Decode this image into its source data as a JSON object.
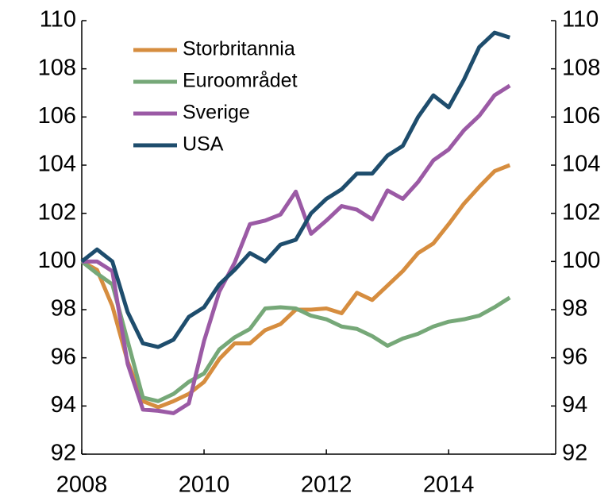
{
  "chart_data": {
    "type": "line",
    "x": [
      2008,
      2008.25,
      2008.5,
      2008.75,
      2009,
      2009.25,
      2009.5,
      2009.75,
      2010,
      2010.25,
      2010.5,
      2010.75,
      2011,
      2011.25,
      2011.5,
      2011.75,
      2012,
      2012.25,
      2012.5,
      2012.75,
      2013,
      2013.25,
      2013.5,
      2013.75,
      2014,
      2014.25,
      2014.5,
      2014.75,
      2015
    ],
    "xlim": [
      2008,
      2015.75
    ],
    "xticks": [
      2008,
      2010,
      2012,
      2014
    ],
    "ylim": [
      92,
      110
    ],
    "yticks": [
      92,
      94,
      96,
      98,
      100,
      102,
      104,
      106,
      108,
      110
    ],
    "y2lim": [
      92,
      110
    ],
    "y2ticks": [
      92,
      94,
      96,
      98,
      100,
      102,
      104,
      106,
      108,
      110
    ],
    "legend": "upper left",
    "series": [
      {
        "name": "Storbritannia",
        "color": "#d68d3f",
        "values": [
          100,
          99.65,
          98.15,
          95.85,
          94.2,
          93.95,
          94.2,
          94.5,
          95.0,
          95.95,
          96.6,
          96.6,
          97.15,
          97.4,
          98.0,
          98.0,
          98.05,
          97.85,
          98.7,
          98.4,
          99.0,
          99.6,
          100.35,
          100.75,
          101.55,
          102.4,
          103.1,
          103.75,
          104.0
        ]
      },
      {
        "name": "Euroområdet",
        "color": "#76a878",
        "values": [
          100,
          99.5,
          99.05,
          96.7,
          94.35,
          94.2,
          94.5,
          95.0,
          95.35,
          96.35,
          96.85,
          97.2,
          98.05,
          98.1,
          98.05,
          97.75,
          97.6,
          97.3,
          97.2,
          96.9,
          96.5,
          96.8,
          97.0,
          97.3,
          97.5,
          97.6,
          97.75,
          98.1,
          98.5
        ]
      },
      {
        "name": "Sverige",
        "color": "#9b5aa5",
        "values": [
          100,
          100,
          99.6,
          95.75,
          93.85,
          93.8,
          93.7,
          94.1,
          96.7,
          98.75,
          99.95,
          101.55,
          101.7,
          101.95,
          102.9,
          101.15,
          101.7,
          102.3,
          102.15,
          101.75,
          102.95,
          102.6,
          103.3,
          104.2,
          104.65,
          105.45,
          106.05,
          106.9,
          107.3
        ]
      },
      {
        "name": "USA",
        "color": "#1e4d6d",
        "values": [
          100,
          100.5,
          100,
          97.9,
          96.6,
          96.45,
          96.75,
          97.7,
          98.1,
          99.05,
          99.65,
          100.35,
          100,
          100.7,
          100.9,
          102.0,
          102.6,
          103.0,
          103.65,
          103.65,
          104.4,
          104.8,
          106.0,
          106.9,
          106.4,
          107.55,
          108.9,
          109.5,
          109.3
        ]
      }
    ]
  }
}
